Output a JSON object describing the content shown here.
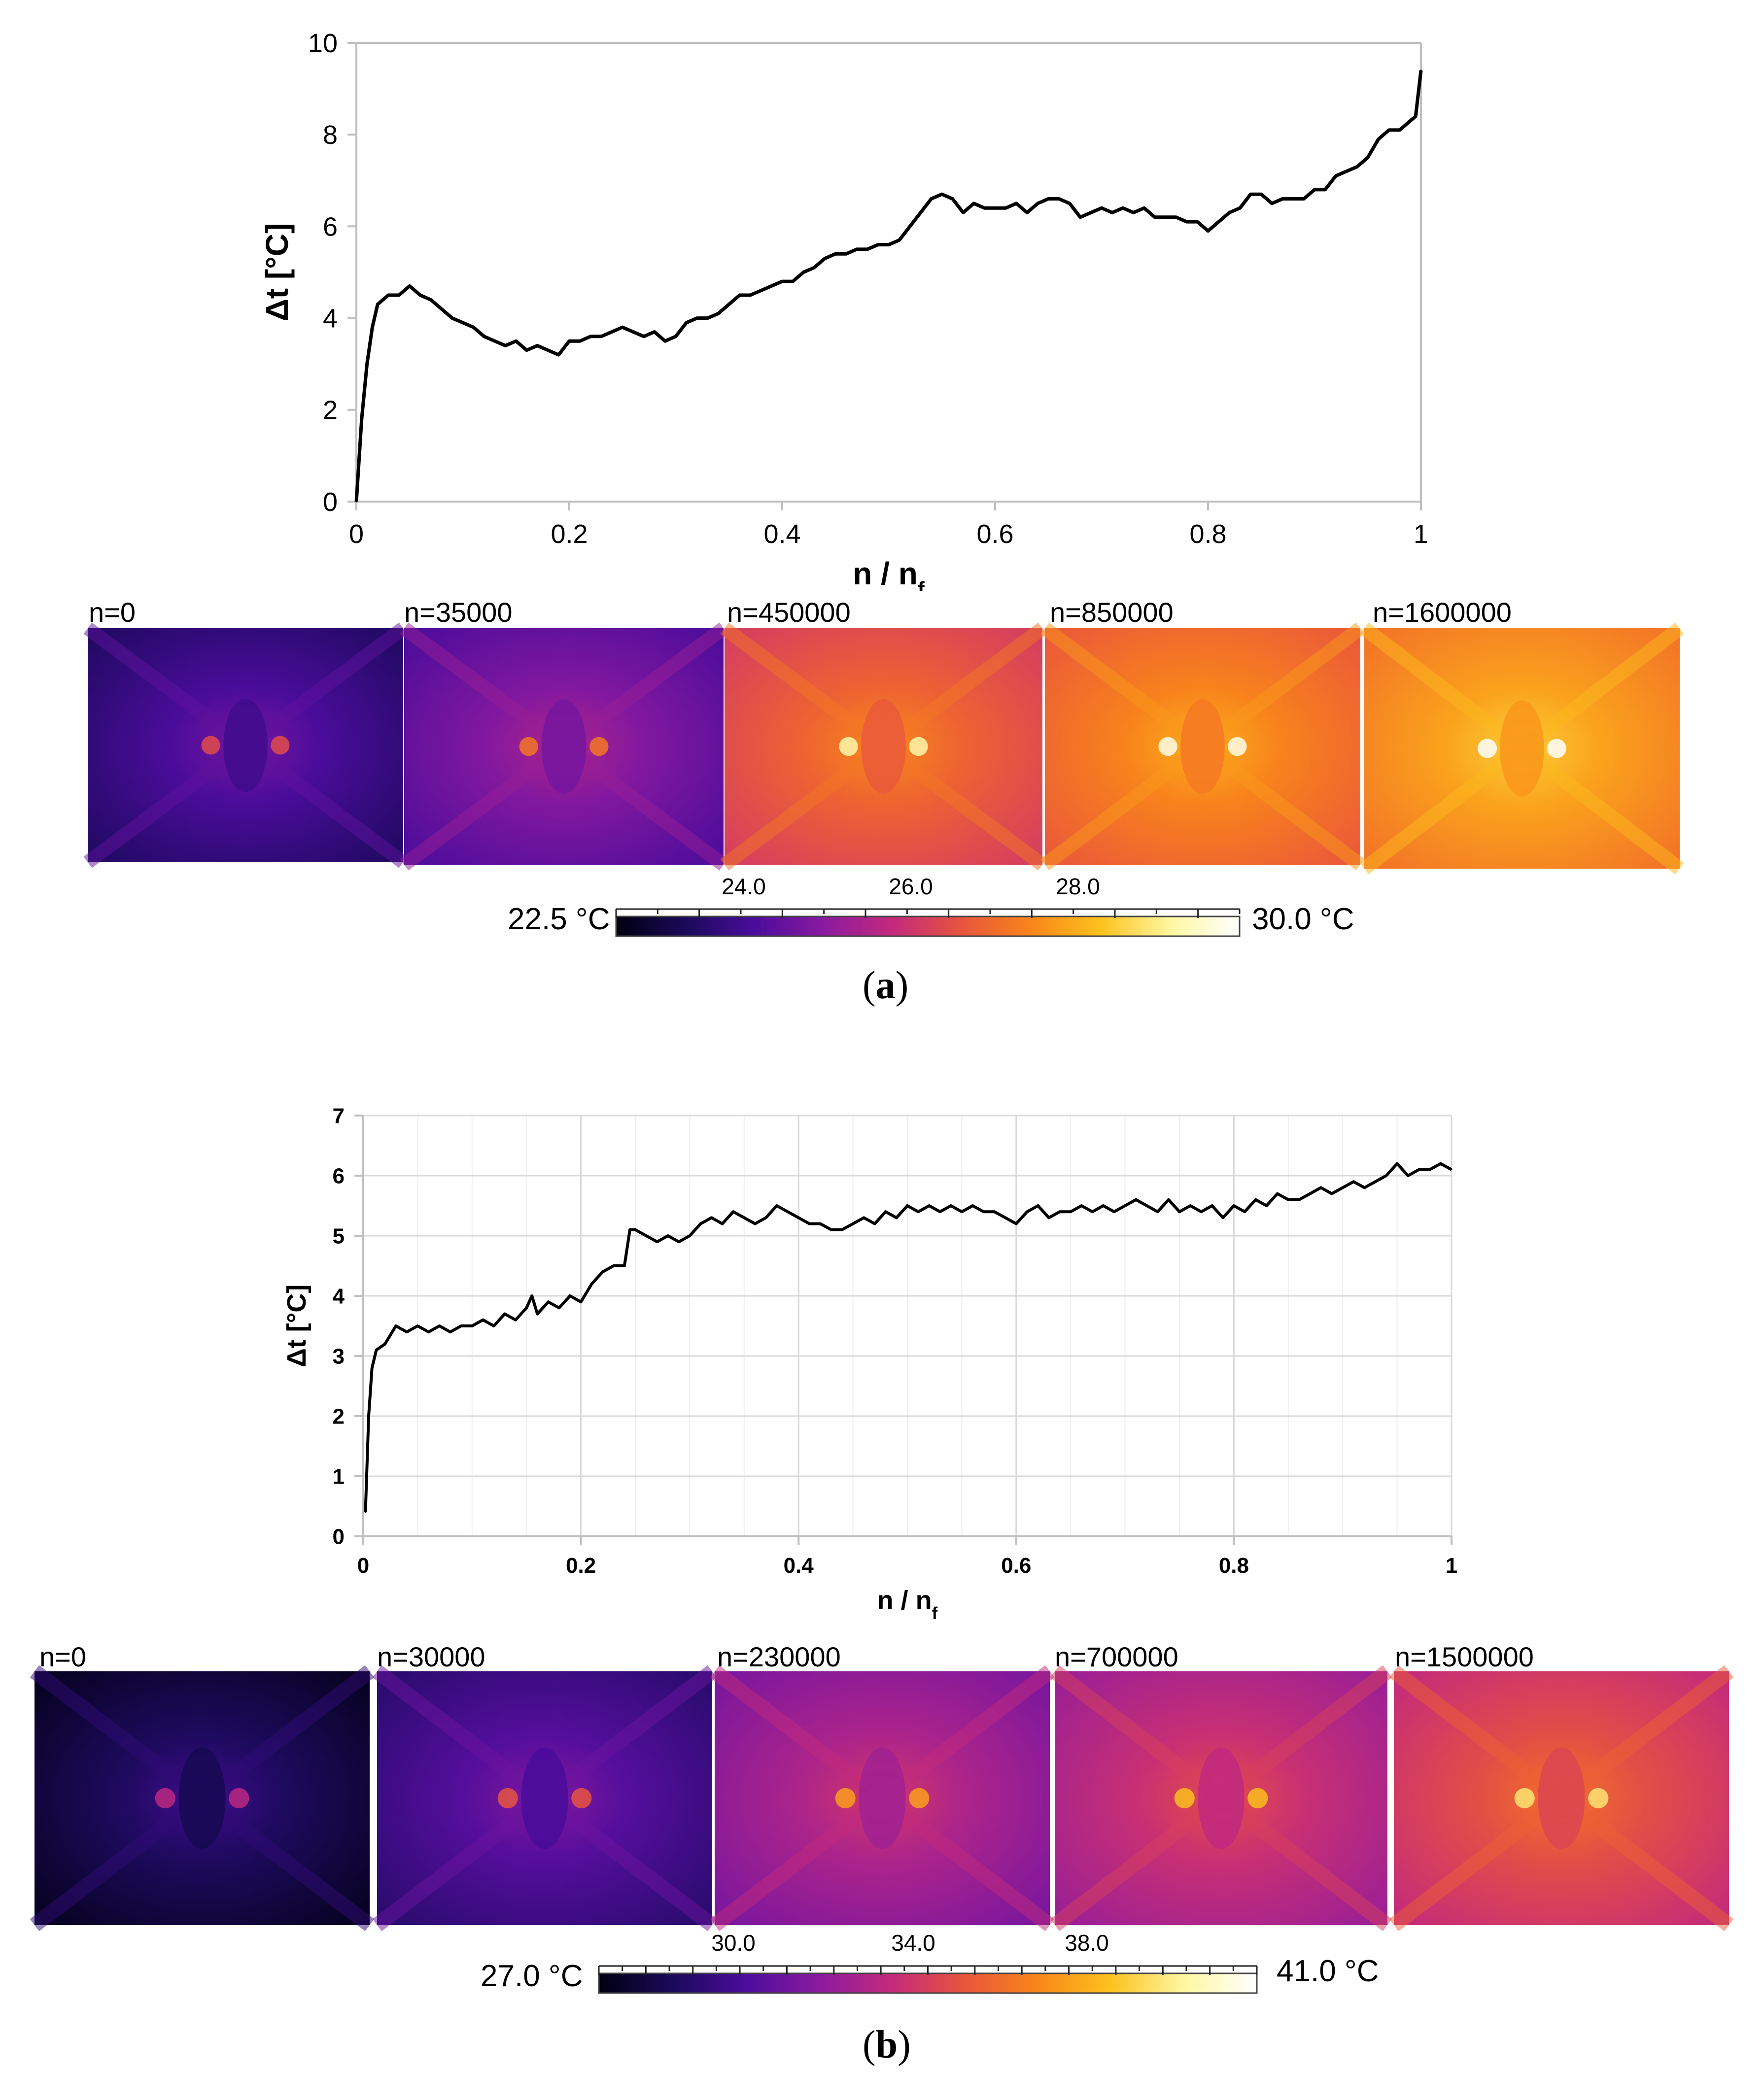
{
  "chart_data": [
    {
      "type": "line",
      "panel": "a",
      "title": "",
      "xlabel": "n / n",
      "xlabel_sub": "f",
      "ylabel": "Δt [°C]",
      "xlim": [
        0,
        1
      ],
      "ylim": [
        0,
        10
      ],
      "xticks": [
        "0",
        "0.2",
        "0.4",
        "0.6",
        "0.8",
        "1"
      ],
      "yticks": [
        "0",
        "2",
        "4",
        "6",
        "8",
        "10"
      ],
      "grid": false,
      "x": [
        0,
        0.005,
        0.01,
        0.015,
        0.02,
        0.025,
        0.03,
        0.04,
        0.05,
        0.06,
        0.07,
        0.08,
        0.09,
        0.1,
        0.11,
        0.12,
        0.13,
        0.14,
        0.15,
        0.16,
        0.17,
        0.18,
        0.19,
        0.2,
        0.21,
        0.22,
        0.23,
        0.24,
        0.25,
        0.26,
        0.27,
        0.28,
        0.29,
        0.3,
        0.31,
        0.32,
        0.33,
        0.34,
        0.35,
        0.36,
        0.37,
        0.38,
        0.39,
        0.4,
        0.41,
        0.42,
        0.43,
        0.44,
        0.45,
        0.46,
        0.47,
        0.48,
        0.49,
        0.5,
        0.51,
        0.52,
        0.53,
        0.54,
        0.55,
        0.56,
        0.57,
        0.58,
        0.59,
        0.6,
        0.61,
        0.62,
        0.63,
        0.64,
        0.65,
        0.66,
        0.67,
        0.68,
        0.69,
        0.7,
        0.71,
        0.72,
        0.73,
        0.74,
        0.75,
        0.76,
        0.77,
        0.78,
        0.79,
        0.8,
        0.81,
        0.82,
        0.83,
        0.84,
        0.85,
        0.86,
        0.87,
        0.88,
        0.89,
        0.9,
        0.91,
        0.92,
        0.93,
        0.94,
        0.95,
        0.96,
        0.97,
        0.98,
        0.99,
        0.995,
        1.0
      ],
      "values": [
        0,
        1.8,
        3.0,
        3.8,
        4.3,
        4.4,
        4.5,
        4.5,
        4.7,
        4.5,
        4.4,
        4.2,
        4.0,
        3.9,
        3.8,
        3.6,
        3.5,
        3.4,
        3.5,
        3.3,
        3.4,
        3.3,
        3.2,
        3.5,
        3.5,
        3.6,
        3.6,
        3.7,
        3.8,
        3.7,
        3.6,
        3.7,
        3.5,
        3.6,
        3.9,
        4.0,
        4.0,
        4.1,
        4.3,
        4.5,
        4.5,
        4.6,
        4.7,
        4.8,
        4.8,
        5.0,
        5.1,
        5.3,
        5.4,
        5.4,
        5.5,
        5.5,
        5.6,
        5.6,
        5.7,
        6.0,
        6.3,
        6.6,
        6.7,
        6.6,
        6.3,
        6.5,
        6.4,
        6.4,
        6.4,
        6.5,
        6.3,
        6.5,
        6.6,
        6.6,
        6.5,
        6.2,
        6.3,
        6.4,
        6.3,
        6.4,
        6.3,
        6.4,
        6.2,
        6.2,
        6.2,
        6.1,
        6.1,
        5.9,
        6.1,
        6.3,
        6.4,
        6.7,
        6.7,
        6.5,
        6.6,
        6.6,
        6.6,
        6.8,
        6.8,
        7.1,
        7.2,
        7.3,
        7.5,
        7.9,
        8.1,
        8.1,
        8.3,
        8.4,
        9.4
      ]
    },
    {
      "type": "line",
      "panel": "b",
      "title": "",
      "xlabel": "n / n",
      "xlabel_sub": "f",
      "ylabel": "Δt [°C]",
      "xlim": [
        0,
        1
      ],
      "ylim": [
        0,
        7
      ],
      "xticks": [
        "0",
        "0.2",
        "0.4",
        "0.6",
        "0.8",
        "1"
      ],
      "yticks": [
        "0",
        "1",
        "2",
        "3",
        "4",
        "5",
        "6",
        "7"
      ],
      "grid": true,
      "x": [
        0.002,
        0.005,
        0.008,
        0.012,
        0.02,
        0.03,
        0.04,
        0.05,
        0.06,
        0.07,
        0.08,
        0.09,
        0.1,
        0.11,
        0.12,
        0.13,
        0.14,
        0.15,
        0.155,
        0.16,
        0.17,
        0.18,
        0.19,
        0.2,
        0.21,
        0.22,
        0.23,
        0.24,
        0.245,
        0.25,
        0.26,
        0.27,
        0.28,
        0.29,
        0.3,
        0.31,
        0.32,
        0.33,
        0.34,
        0.35,
        0.36,
        0.37,
        0.38,
        0.39,
        0.4,
        0.41,
        0.42,
        0.43,
        0.44,
        0.45,
        0.46,
        0.47,
        0.48,
        0.49,
        0.5,
        0.51,
        0.52,
        0.53,
        0.54,
        0.55,
        0.56,
        0.57,
        0.58,
        0.59,
        0.6,
        0.61,
        0.62,
        0.63,
        0.64,
        0.65,
        0.66,
        0.67,
        0.68,
        0.69,
        0.7,
        0.71,
        0.72,
        0.73,
        0.74,
        0.75,
        0.76,
        0.77,
        0.78,
        0.79,
        0.8,
        0.81,
        0.82,
        0.83,
        0.84,
        0.85,
        0.86,
        0.87,
        0.88,
        0.89,
        0.9,
        0.91,
        0.92,
        0.93,
        0.94,
        0.95,
        0.96,
        0.97,
        0.98,
        0.99,
        1.0
      ],
      "values": [
        0.4,
        2.0,
        2.8,
        3.1,
        3.2,
        3.5,
        3.4,
        3.5,
        3.4,
        3.5,
        3.4,
        3.5,
        3.5,
        3.6,
        3.5,
        3.7,
        3.6,
        3.8,
        4.0,
        3.7,
        3.9,
        3.8,
        4.0,
        3.9,
        4.2,
        4.4,
        4.5,
        4.5,
        5.1,
        5.1,
        5.0,
        4.9,
        5.0,
        4.9,
        5.0,
        5.2,
        5.3,
        5.2,
        5.4,
        5.3,
        5.2,
        5.3,
        5.5,
        5.4,
        5.3,
        5.2,
        5.2,
        5.1,
        5.1,
        5.2,
        5.3,
        5.2,
        5.4,
        5.3,
        5.5,
        5.4,
        5.5,
        5.4,
        5.5,
        5.4,
        5.5,
        5.4,
        5.4,
        5.3,
        5.2,
        5.4,
        5.5,
        5.3,
        5.4,
        5.4,
        5.5,
        5.4,
        5.5,
        5.4,
        5.5,
        5.6,
        5.5,
        5.4,
        5.6,
        5.4,
        5.5,
        5.4,
        5.5,
        5.3,
        5.5,
        5.4,
        5.6,
        5.5,
        5.7,
        5.6,
        5.6,
        5.7,
        5.8,
        5.7,
        5.8,
        5.9,
        5.8,
        5.9,
        6.0,
        6.2,
        6.0,
        6.1,
        6.1,
        6.2,
        6.1
      ]
    }
  ],
  "panels": [
    {
      "caption": "a",
      "frames": [
        "n=0",
        "n=35000",
        "n=450000",
        "n=850000",
        "n=1600000"
      ],
      "frame_levels": [
        0.18,
        0.28,
        0.55,
        0.62,
        0.68
      ],
      "colorbar": {
        "min_label": "22.5 °C",
        "max_label": "30.0 °C",
        "min": 22.5,
        "max": 30.0,
        "tick_labels": [
          "24.0",
          "26.0",
          "28.0"
        ],
        "tick_values": [
          24.0,
          26.0,
          28.0
        ]
      }
    },
    {
      "caption": "b",
      "frames": [
        "n=0",
        "n=30000",
        "n=230000",
        "n=700000",
        "n=1500000"
      ],
      "frame_levels": [
        0.08,
        0.2,
        0.36,
        0.42,
        0.5
      ],
      "colorbar": {
        "min_label": "27.0 °C",
        "max_label": "41.0 °C",
        "min": 27.0,
        "max": 41.0,
        "tick_labels": [
          "30.0",
          "34.0",
          "38.0"
        ],
        "tick_values": [
          30.0,
          34.0,
          38.0
        ]
      }
    }
  ],
  "colors": {
    "line": "#000000",
    "grid": "#d9d9d9",
    "axis": "#bfbfbf",
    "palette": [
      "#000010",
      "#1a0a5a",
      "#4b0c9b",
      "#8a1aa0",
      "#c42a7c",
      "#e8553c",
      "#f9861a",
      "#fcc21e",
      "#fff7a0",
      "#ffffff"
    ]
  }
}
